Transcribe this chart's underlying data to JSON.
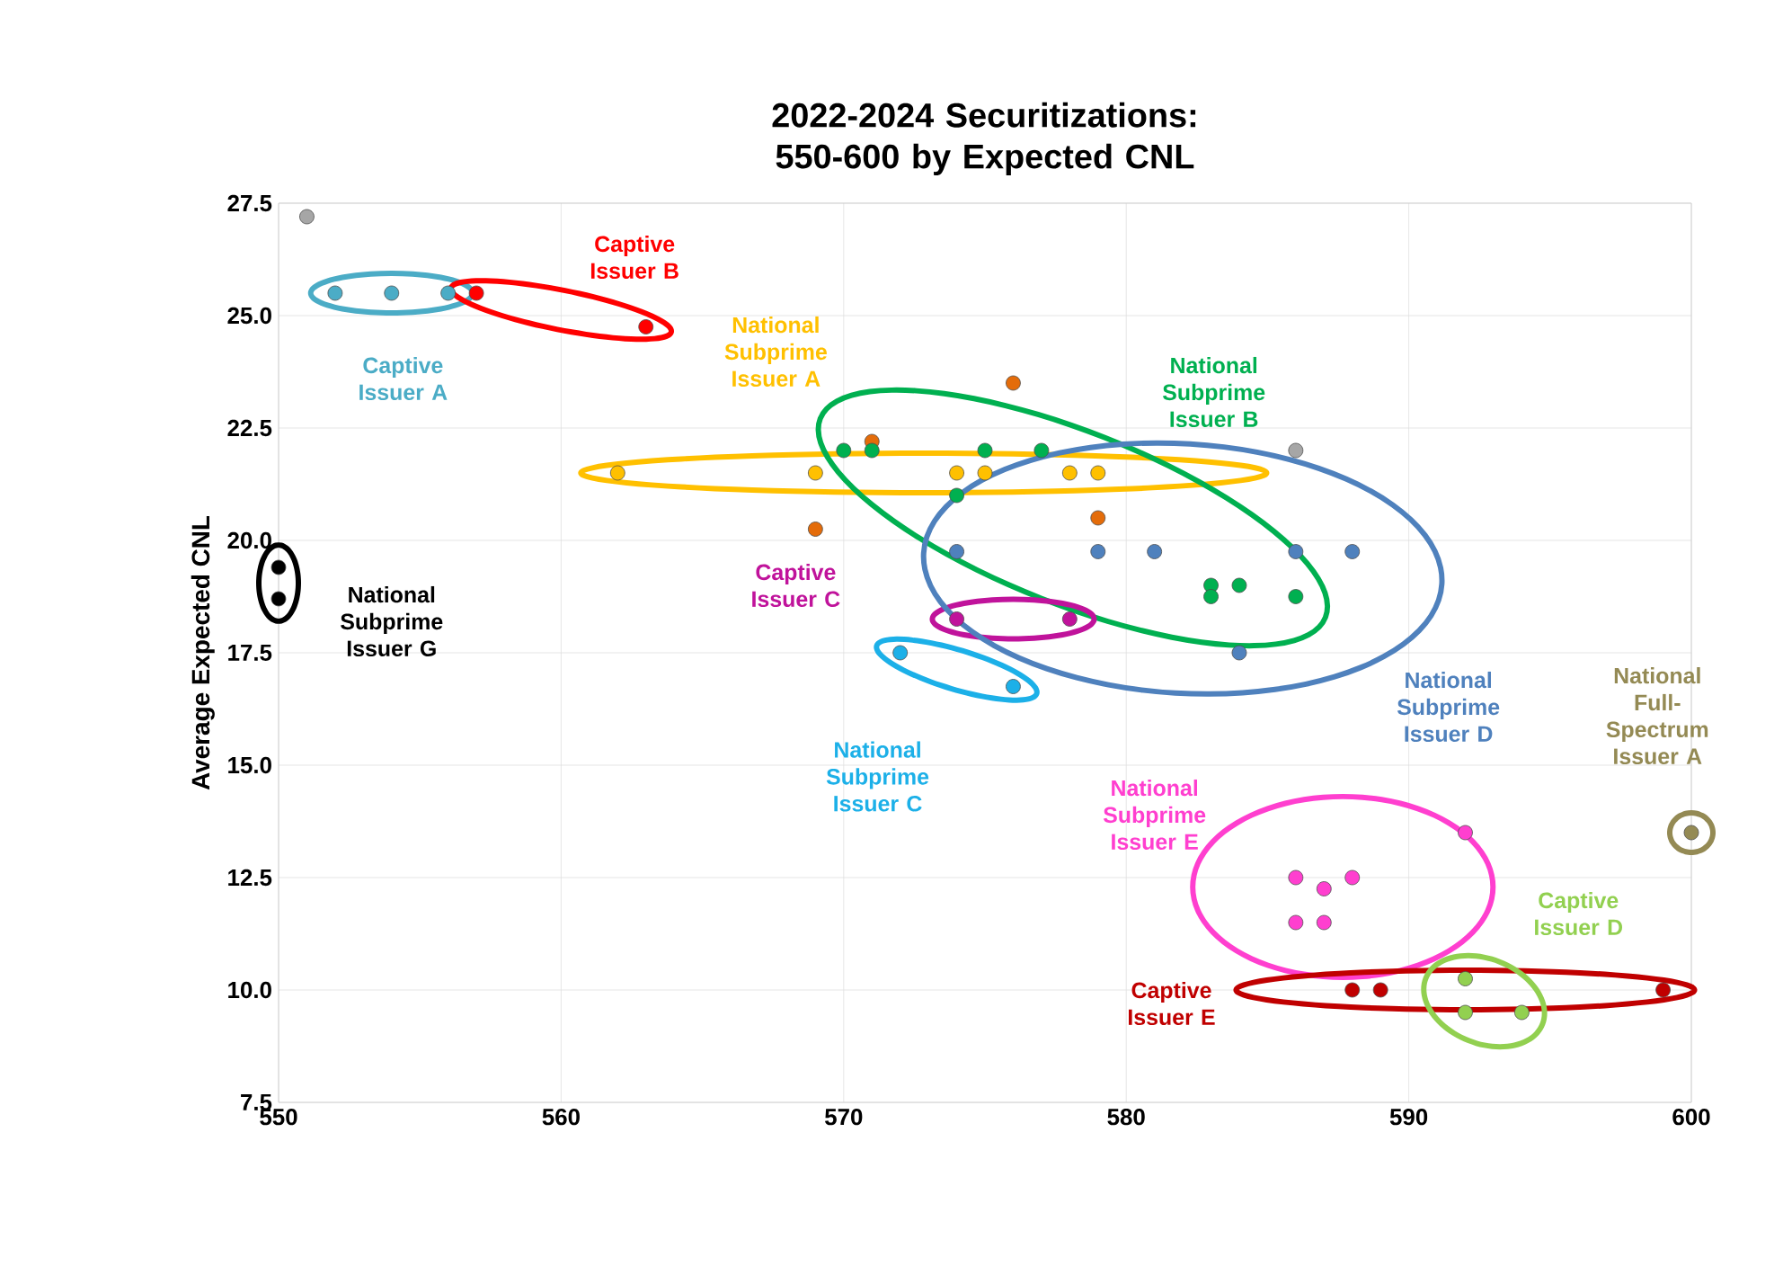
{
  "chart_data": {
    "type": "scatter",
    "title": "2022-2024 Securitizations: 550-600 by Expected CNL",
    "ylabel": "Average Expected CNL",
    "xlim": [
      550,
      600
    ],
    "xticks": [
      550,
      560,
      570,
      580,
      590,
      600
    ],
    "ylim": [
      7.5,
      27.5
    ],
    "yticks": [
      7.5,
      {
        "value": 10,
        "label": "10.0"
      },
      12.5,
      {
        "value": 15,
        "label": "15.0"
      },
      17.5,
      {
        "value": 20,
        "label": "20.0"
      },
      22.5,
      {
        "value": 25,
        "label": "25.0"
      },
      27.5
    ],
    "grid": true,
    "marker": "circle",
    "series": [
      {
        "name": "Captive Issuer A",
        "color": "#4bacc6",
        "x": [
          552,
          554,
          556
        ],
        "values": [
          25.5,
          25.5,
          25.5
        ]
      },
      {
        "name": "Captive Issuer B",
        "color": "#ff0000",
        "x": [
          557,
          563
        ],
        "values": [
          25.5,
          24.75
        ]
      },
      {
        "name": "National Subprime Issuer A",
        "color": "#ffc000",
        "x": [
          562,
          569,
          574,
          575,
          578,
          579
        ],
        "values": [
          21.5,
          21.5,
          21.5,
          21.5,
          21.5,
          21.5
        ]
      },
      {
        "color": "#e46c0a",
        "x": [
          571,
          576,
          569,
          579
        ],
        "values": [
          22.2,
          23.5,
          20.25,
          20.5
        ]
      },
      {
        "name": "National Subprime Issuer B",
        "color": "#00b050",
        "x": [
          570,
          571,
          575,
          577,
          574,
          583,
          583,
          584,
          586
        ],
        "values": [
          22.0,
          22.0,
          22.0,
          22.0,
          21.0,
          19.0,
          18.75,
          19.0,
          18.75
        ]
      },
      {
        "name": "Captive Issuer C",
        "color": "#c0139b",
        "x": [
          574,
          578
        ],
        "values": [
          18.25,
          18.25
        ]
      },
      {
        "name": "National Subprime Issuer C",
        "color": "#1cb0e8",
        "x": [
          572,
          576
        ],
        "values": [
          17.5,
          16.75
        ]
      },
      {
        "name": "National Subprime Issuer D",
        "color": "#4f81bd",
        "x": [
          574,
          579,
          581,
          586,
          588,
          584
        ],
        "values": [
          19.75,
          19.75,
          19.75,
          19.75,
          19.75,
          17.5
        ]
      },
      {
        "name": "National Subprime Issuer E",
        "color": "#ff3fcf",
        "x": [
          592,
          586,
          587,
          588,
          586,
          587
        ],
        "values": [
          13.5,
          12.5,
          12.25,
          12.5,
          11.5,
          11.5
        ]
      },
      {
        "name": "Captive Issuer E",
        "color": "#c00000",
        "x": [
          588,
          589,
          599
        ],
        "values": [
          10.0,
          10.0,
          10.0
        ]
      },
      {
        "name": "Captive Issuer D",
        "color": "#92d050",
        "x": [
          592,
          592,
          594
        ],
        "values": [
          10.25,
          9.5,
          9.5
        ]
      },
      {
        "name": "National Full-Spectrum Issuer A",
        "color": "#948a54",
        "x": [
          600
        ],
        "values": [
          13.5
        ]
      },
      {
        "name": "National Subprime Issuer G",
        "color": "#000000",
        "x": [
          550,
          550
        ],
        "values": [
          19.4,
          18.7
        ]
      },
      {
        "color": "#a6a6a6",
        "x": [
          551,
          586
        ],
        "values": [
          27.2,
          22.0
        ]
      }
    ]
  }
}
